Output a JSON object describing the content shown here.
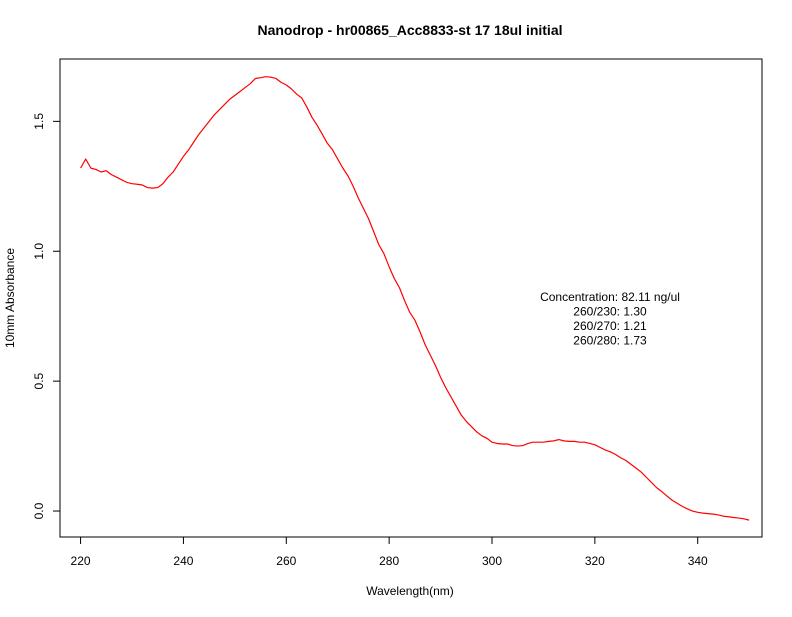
{
  "chart_data": {
    "type": "line",
    "title": "Nanodrop - hr00865_Acc8833-st 17 18ul initial",
    "xlabel": "Wavelength(nm)",
    "ylabel": "10mm Absorbance",
    "xlim": [
      216,
      352.5
    ],
    "ylim": [
      -0.1,
      1.74
    ],
    "x_ticks": [
      220,
      240,
      260,
      280,
      300,
      320,
      340
    ],
    "x_tick_labels": [
      "220",
      "240",
      "260",
      "280",
      "300",
      "320",
      "340"
    ],
    "y_ticks": [
      0.0,
      0.5,
      1.0,
      1.5
    ],
    "y_tick_labels": [
      "0.0",
      "0.5",
      "1.0",
      "1.5"
    ],
    "grid": false,
    "legend": "none",
    "series_color": "#ff0000",
    "annotations": [
      "Concentration: 82.11 ng/ul",
      "260/230: 1.30",
      "260/270: 1.21",
      "260/280: 1.73"
    ],
    "x": [
      220,
      221,
      222,
      223,
      224,
      225,
      226,
      227,
      228,
      229,
      230,
      231,
      232,
      233,
      234,
      235,
      236,
      237,
      238,
      239,
      240,
      241,
      242,
      243,
      244,
      245,
      246,
      247,
      248,
      249,
      250,
      251,
      252,
      253,
      254,
      255,
      256,
      257,
      258,
      259,
      260,
      261,
      262,
      263,
      264,
      265,
      266,
      267,
      268,
      269,
      270,
      271,
      272,
      273,
      274,
      275,
      276,
      277,
      278,
      279,
      280,
      281,
      282,
      283,
      284,
      285,
      286,
      287,
      288,
      289,
      290,
      291,
      292,
      293,
      294,
      295,
      296,
      297,
      298,
      299,
      300,
      301,
      302,
      303,
      304,
      305,
      306,
      307,
      308,
      309,
      310,
      311,
      312,
      313,
      314,
      315,
      316,
      317,
      318,
      319,
      320,
      321,
      322,
      323,
      324,
      325,
      326,
      327,
      328,
      329,
      330,
      331,
      332,
      333,
      334,
      335,
      336,
      337,
      338,
      339,
      340,
      341,
      342,
      343,
      344,
      345,
      346,
      347,
      348,
      349,
      350
    ],
    "y": [
      1.32,
      1.355,
      1.32,
      1.315,
      1.305,
      1.31,
      1.295,
      1.285,
      1.275,
      1.265,
      1.26,
      1.258,
      1.255,
      1.245,
      1.243,
      1.245,
      1.26,
      1.285,
      1.305,
      1.335,
      1.365,
      1.39,
      1.42,
      1.45,
      1.475,
      1.5,
      1.525,
      1.545,
      1.565,
      1.585,
      1.6,
      1.615,
      1.63,
      1.645,
      1.665,
      1.668,
      1.672,
      1.67,
      1.665,
      1.65,
      1.64,
      1.625,
      1.605,
      1.59,
      1.555,
      1.515,
      1.485,
      1.45,
      1.415,
      1.39,
      1.355,
      1.32,
      1.29,
      1.25,
      1.205,
      1.165,
      1.125,
      1.075,
      1.025,
      0.99,
      0.94,
      0.895,
      0.86,
      0.81,
      0.765,
      0.735,
      0.69,
      0.64,
      0.6,
      0.56,
      0.515,
      0.475,
      0.44,
      0.405,
      0.37,
      0.345,
      0.325,
      0.305,
      0.29,
      0.28,
      0.265,
      0.26,
      0.258,
      0.258,
      0.252,
      0.25,
      0.252,
      0.26,
      0.265,
      0.265,
      0.265,
      0.268,
      0.27,
      0.275,
      0.27,
      0.268,
      0.268,
      0.265,
      0.265,
      0.26,
      0.255,
      0.245,
      0.235,
      0.228,
      0.218,
      0.205,
      0.195,
      0.18,
      0.165,
      0.15,
      0.13,
      0.11,
      0.09,
      0.075,
      0.058,
      0.042,
      0.03,
      0.018,
      0.008,
      0.0,
      -0.005,
      -0.008,
      -0.01,
      -0.012,
      -0.015,
      -0.02,
      -0.022,
      -0.025,
      -0.027,
      -0.03,
      -0.035
    ]
  }
}
